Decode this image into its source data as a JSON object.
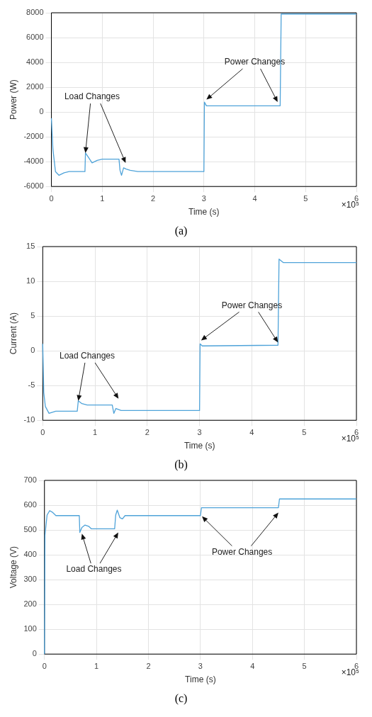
{
  "chart_data": [
    {
      "type": "line",
      "title": "(a)",
      "xlabel": "Time (s)",
      "ylabel": "Power (W)",
      "xlim": [
        0,
        6
      ],
      "xticks": [
        0,
        1,
        2,
        3,
        4,
        5,
        6
      ],
      "ylim": [
        -6000,
        8000
      ],
      "yticks": [
        -6000,
        -4000,
        -2000,
        0,
        2000,
        4000,
        6000,
        8000
      ],
      "grid": true,
      "annotations": [
        {
          "text": "Load Changes",
          "x": 0.67,
          "y": -3300
        },
        {
          "text": "Power Changes",
          "x": 3.05,
          "y": 1000
        },
        "×10⁵"
      ],
      "series": [
        {
          "color": "#4fa3d9",
          "x": [
            0,
            0.03,
            0.08,
            0.15,
            0.25,
            0.35,
            0.66,
            0.67,
            0.72,
            0.8,
            0.9,
            1.0,
            1.33,
            1.35,
            1.38,
            1.42,
            1.47,
            1.55,
            1.7,
            3.0,
            3.01,
            3.05,
            4.5,
            4.52,
            6
          ],
          "values": [
            -500,
            -3000,
            -4800,
            -5100,
            -4900,
            -4800,
            -4800,
            -3300,
            -3600,
            -4100,
            -3900,
            -3800,
            -3800,
            -4700,
            -5100,
            -4500,
            -4600,
            -4700,
            -4800,
            -4800,
            800,
            500,
            500,
            7900,
            7900
          ]
        }
      ]
    },
    {
      "type": "line",
      "title": "(b)",
      "xlabel": "Time (s)",
      "ylabel": "Current (A)",
      "xlim": [
        0,
        6
      ],
      "xticks": [
        0,
        1,
        2,
        3,
        4,
        5,
        6
      ],
      "ylim": [
        -10,
        15
      ],
      "yticks": [
        -10,
        -5,
        0,
        5,
        10,
        15
      ],
      "grid": true,
      "series": [
        {
          "color": "#4fa3d9",
          "x": [
            0,
            0.02,
            0.05,
            0.12,
            0.25,
            0.66,
            0.68,
            0.75,
            0.85,
            1.33,
            1.36,
            1.4,
            1.5,
            3.0,
            3.01,
            3.05,
            4.5,
            4.52,
            4.6,
            6
          ],
          "values": [
            1,
            -6,
            -8,
            -9,
            -8.7,
            -8.7,
            -7.2,
            -7.6,
            -7.8,
            -7.8,
            -9,
            -8.3,
            -8.6,
            -8.6,
            1,
            0.7,
            0.8,
            13.2,
            12.7,
            12.7
          ]
        }
      ],
      "annotations": [
        {
          "text": "Load Changes",
          "x": 0.68,
          "y": -7.2
        },
        {
          "text": "Power Changes",
          "x": 3.03,
          "y": 1.5
        },
        "×10⁵"
      ]
    },
    {
      "type": "line",
      "title": "(c)",
      "xlabel": "Time (s)",
      "ylabel": "Voltage (V)",
      "xlim": [
        0,
        6
      ],
      "xticks": [
        0,
        1,
        2,
        3,
        4,
        5,
        6
      ],
      "ylim": [
        0,
        700
      ],
      "yticks": [
        0,
        100,
        200,
        300,
        400,
        500,
        600,
        700
      ],
      "grid": true,
      "series": [
        {
          "color": "#4fa3d9",
          "x": [
            0,
            0.01,
            0.05,
            0.1,
            0.15,
            0.22,
            0.67,
            0.68,
            0.72,
            0.78,
            0.85,
            0.9,
            1.35,
            1.37,
            1.4,
            1.45,
            1.5,
            1.55,
            3.0,
            3.02,
            4.5,
            4.52,
            6
          ],
          "values": [
            0,
            480,
            560,
            578,
            572,
            558,
            558,
            490,
            510,
            520,
            515,
            505,
            505,
            560,
            580,
            550,
            545,
            558,
            558,
            590,
            590,
            625,
            625
          ]
        }
      ],
      "annotations": [
        {
          "text": "Load Changes",
          "x": 0.72,
          "y": 485
        },
        {
          "text": "Power Changes",
          "x": 3.03,
          "y": 555
        },
        "×10⁵"
      ]
    }
  ]
}
